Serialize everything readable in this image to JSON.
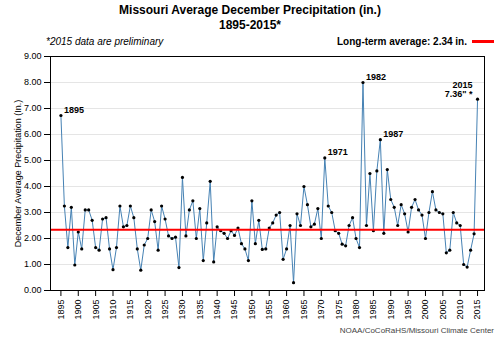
{
  "chart_data": {
    "type": "line",
    "title": "Missouri Average December Precipitation (in.)",
    "subtitle": "1895-2015*",
    "ylabel": "December Average Precipitation (In.)",
    "x": [
      1895,
      1896,
      1897,
      1898,
      1899,
      1900,
      1901,
      1902,
      1903,
      1904,
      1905,
      1906,
      1907,
      1908,
      1909,
      1910,
      1911,
      1912,
      1913,
      1914,
      1915,
      1916,
      1917,
      1918,
      1919,
      1920,
      1921,
      1922,
      1923,
      1924,
      1925,
      1926,
      1927,
      1928,
      1929,
      1930,
      1931,
      1932,
      1933,
      1934,
      1935,
      1936,
      1937,
      1938,
      1939,
      1940,
      1941,
      1942,
      1943,
      1944,
      1945,
      1946,
      1947,
      1948,
      1949,
      1950,
      1951,
      1952,
      1953,
      1954,
      1955,
      1956,
      1957,
      1958,
      1959,
      1960,
      1961,
      1962,
      1963,
      1964,
      1965,
      1966,
      1967,
      1968,
      1969,
      1970,
      1971,
      1972,
      1973,
      1974,
      1975,
      1976,
      1977,
      1978,
      1979,
      1980,
      1981,
      1982,
      1983,
      1984,
      1985,
      1986,
      1987,
      1988,
      1989,
      1990,
      1991,
      1992,
      1993,
      1994,
      1995,
      1996,
      1997,
      1998,
      1999,
      2000,
      2001,
      2002,
      2003,
      2004,
      2005,
      2006,
      2007,
      2008,
      2009,
      2010,
      2011,
      2012,
      2013,
      2014,
      2015
    ],
    "values": [
      6.73,
      3.25,
      1.65,
      3.2,
      0.98,
      2.25,
      1.6,
      3.1,
      3.1,
      2.7,
      1.65,
      1.55,
      2.75,
      2.8,
      1.6,
      0.8,
      1.65,
      3.25,
      2.45,
      2.5,
      3.25,
      2.8,
      1.6,
      0.78,
      1.75,
      2.0,
      3.1,
      2.65,
      1.55,
      3.25,
      2.75,
      2.1,
      2.0,
      2.05,
      0.88,
      4.35,
      2.1,
      3.1,
      3.45,
      2.0,
      3.15,
      1.15,
      2.6,
      4.2,
      1.1,
      2.45,
      2.3,
      2.2,
      2.0,
      2.3,
      2.12,
      2.4,
      1.8,
      1.6,
      1.15,
      3.45,
      1.8,
      2.7,
      1.58,
      1.6,
      2.4,
      2.6,
      2.9,
      3.0,
      1.2,
      1.6,
      2.5,
      0.3,
      2.95,
      2.5,
      4.0,
      3.3,
      2.45,
      2.55,
      3.15,
      2.0,
      5.1,
      3.25,
      3.0,
      2.3,
      2.2,
      1.78,
      1.72,
      2.5,
      2.8,
      2.0,
      1.65,
      8.0,
      2.5,
      4.5,
      2.3,
      4.6,
      5.8,
      2.2,
      4.65,
      3.5,
      3.2,
      2.5,
      3.3,
      2.95,
      2.25,
      3.2,
      3.5,
      3.1,
      2.9,
      2.0,
      3.0,
      3.8,
      3.1,
      3.0,
      2.95,
      1.45,
      1.55,
      3.0,
      2.6,
      2.5,
      1.0,
      0.9,
      1.55,
      2.18,
      7.36
    ],
    "xlim": [
      1892,
      2017
    ],
    "xticks": [
      1895,
      1900,
      1905,
      1910,
      1915,
      1920,
      1925,
      1930,
      1935,
      1940,
      1945,
      1950,
      1955,
      1960,
      1965,
      1970,
      1975,
      1980,
      1985,
      1990,
      1995,
      2000,
      2005,
      2010,
      2015
    ],
    "ylim": [
      0.0,
      9.0
    ],
    "yticks": [
      {
        "value": 0.0,
        "label": "0.00"
      },
      {
        "value": 1.0,
        "label": "1.00"
      },
      {
        "value": 2.0,
        "label": "2.00"
      },
      {
        "value": 3.0,
        "label": "3.00"
      },
      {
        "value": 4.0,
        "label": "4.00"
      },
      {
        "value": 5.0,
        "label": "5.00"
      },
      {
        "value": 6.0,
        "label": "6.00"
      },
      {
        "value": 7.0,
        "label": "7.00"
      },
      {
        "value": 8.0,
        "label": "8.00"
      },
      {
        "value": 9.0,
        "label": "9.00"
      }
    ],
    "grid": true,
    "marker": "dot",
    "reference_lines": [
      {
        "y": 2.34,
        "label": "Long-term average: 2.34 in.",
        "color": "#FF0000"
      }
    ],
    "annotations": [
      {
        "x": 1895,
        "y": 6.73,
        "text": "1895"
      },
      {
        "x": 1971,
        "y": 5.1,
        "text": "1971"
      },
      {
        "x": 1982,
        "y": 8.0,
        "text": "1982"
      },
      {
        "x": 1987,
        "y": 5.8,
        "text": "1987"
      },
      {
        "x": 2015,
        "y": 7.36,
        "text": "2015\n7.36\" *"
      }
    ],
    "notes": [
      "*2015 data are preliminary"
    ],
    "caption": "NOAA/CoCoRaHS/Missouri Climate Center"
  }
}
